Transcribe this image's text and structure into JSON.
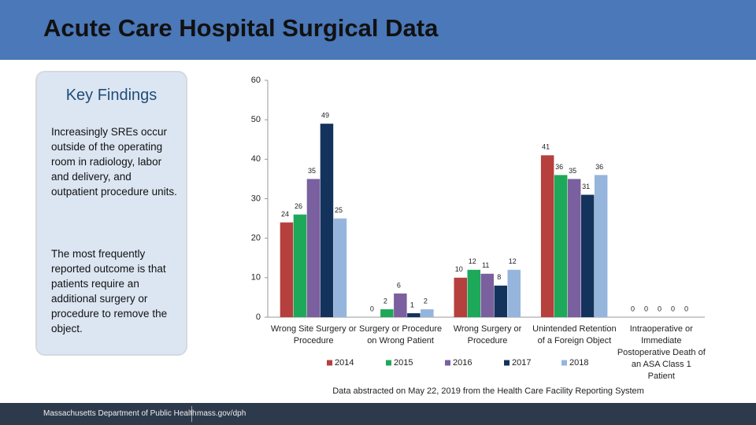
{
  "slide": {
    "title": "Acute Care Hospital Surgical Data",
    "panel": {
      "heading": "Key Findings",
      "paragraphs": [
        "Increasingly SREs occur outside of the operating room in radiology, labor and delivery, and outpatient procedure units.",
        "The most frequently reported outcome is that patients require an additional surgery or procedure to remove the object."
      ]
    },
    "footer": {
      "organization": "Massachusetts Department of Public Health",
      "url": "mass.gov/dph"
    }
  },
  "chart_data": {
    "type": "bar",
    "categories": [
      "Wrong Site Surgery or Procedure",
      "Surgery or Procedure on Wrong Patient",
      "Wrong Surgery or Procedure",
      "Unintended Retention of a Foreign Object",
      "Intraoperative or Immediate Postoperative Death of an ASA Class 1 Patient"
    ],
    "series": [
      {
        "name": "2014",
        "color": "#b5403d",
        "values": [
          24,
          0,
          10,
          41,
          0
        ]
      },
      {
        "name": "2015",
        "color": "#1ea85a",
        "values": [
          26,
          2,
          12,
          36,
          0
        ]
      },
      {
        "name": "2016",
        "color": "#7a609e",
        "values": [
          35,
          6,
          11,
          35,
          0
        ]
      },
      {
        "name": "2017",
        "color": "#13335c",
        "values": [
          49,
          1,
          8,
          31,
          0
        ]
      },
      {
        "name": "2018",
        "color": "#96b5dc",
        "values": [
          25,
          2,
          12,
          36,
          0
        ]
      }
    ],
    "ylim": [
      0,
      60
    ],
    "yticks": [
      0,
      10,
      20,
      30,
      40,
      50,
      60
    ],
    "grid": false,
    "legend": "bottom",
    "caption": "Data abstracted on May 22, 2019 from the Health Care Facility Reporting System"
  }
}
